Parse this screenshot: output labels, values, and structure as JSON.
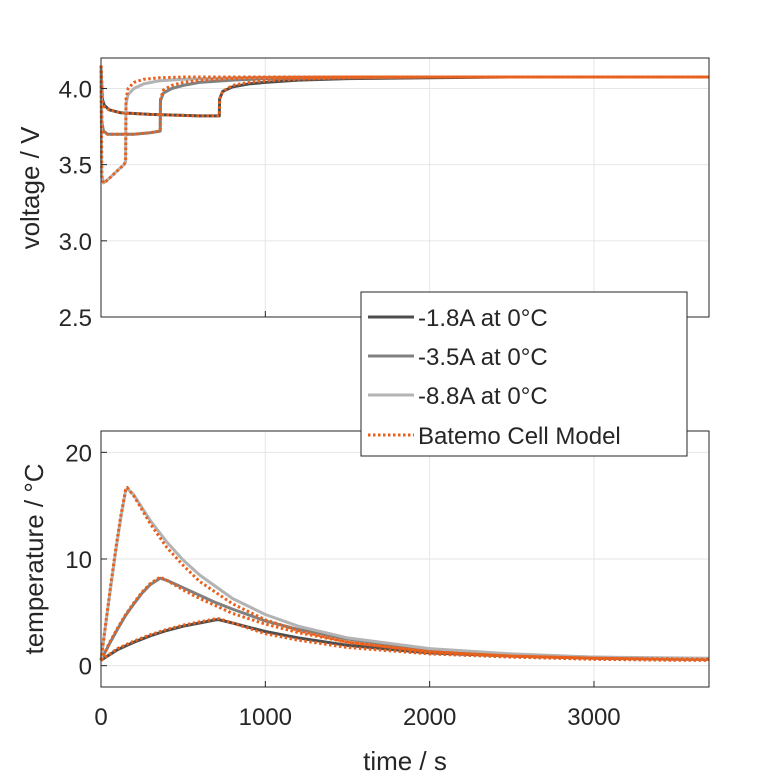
{
  "chart_data": [
    {
      "type": "line",
      "ylabel": "voltage / V",
      "xlabel": "",
      "xlim": [
        0,
        3700
      ],
      "ylim": [
        2.5,
        4.2
      ],
      "xticks": [
        0,
        1000,
        2000,
        3000
      ],
      "yticks": [
        2.5,
        3.0,
        3.5,
        4.0
      ],
      "ytick_labels": [
        "2.5",
        "3.0",
        "3.5",
        "4.0"
      ],
      "grid": true,
      "series": [
        {
          "name": "-1.8A at 0°C",
          "color": "#4d4d4d",
          "x": [
            0,
            8,
            20,
            50,
            120,
            300,
            600,
            720,
            722,
            740,
            800,
            900,
            1000,
            1200,
            1500,
            2000,
            2500,
            3000,
            3700
          ],
          "y": [
            4.15,
            3.93,
            3.89,
            3.86,
            3.84,
            3.83,
            3.82,
            3.82,
            3.93,
            3.98,
            4.01,
            4.03,
            4.04,
            4.055,
            4.065,
            4.07,
            4.075,
            4.075,
            4.075
          ]
        },
        {
          "name": "-3.5A at 0°C",
          "color": "#808080",
          "x": [
            0,
            5,
            15,
            40,
            100,
            200,
            300,
            360,
            362,
            380,
            430,
            500,
            600,
            800,
            1000,
            1500,
            2000,
            3000,
            3700
          ],
          "y": [
            4.15,
            3.78,
            3.72,
            3.7,
            3.7,
            3.7,
            3.71,
            3.72,
            3.92,
            3.97,
            4.0,
            4.02,
            4.04,
            4.055,
            4.065,
            4.07,
            4.075,
            4.075,
            4.075
          ]
        },
        {
          "name": "-8.8A at 0°C",
          "color": "#b3b3b3",
          "x": [
            0,
            5,
            15,
            30,
            60,
            100,
            140,
            150,
            152,
            165,
            200,
            260,
            350,
            500,
            800,
            1200,
            2000,
            3000,
            3700
          ],
          "y": [
            4.15,
            3.43,
            3.38,
            3.39,
            3.42,
            3.46,
            3.5,
            3.52,
            3.9,
            3.96,
            4.0,
            4.03,
            4.05,
            4.06,
            4.07,
            4.075,
            4.075,
            4.075,
            4.075
          ]
        },
        {
          "name": "Batemo Cell Model",
          "color": "#e8601c",
          "dashed": true,
          "x": [
            0,
            8,
            20,
            50,
            120,
            300,
            600,
            720,
            722,
            740,
            800,
            900,
            1000,
            1200,
            1500,
            2000,
            2500,
            3000,
            3700
          ],
          "y": [
            4.15,
            3.92,
            3.88,
            3.86,
            3.84,
            3.83,
            3.82,
            3.82,
            3.93,
            3.98,
            4.02,
            4.04,
            4.05,
            4.06,
            4.07,
            4.075,
            4.075,
            4.075,
            4.075
          ]
        },
        {
          "name": "Batemo Cell Model",
          "color": "#e8601c",
          "dashed": true,
          "x": [
            0,
            5,
            15,
            40,
            100,
            200,
            300,
            360,
            362,
            380,
            430,
            500,
            600,
            800,
            1000,
            1500,
            2000,
            3000,
            3700
          ],
          "y": [
            4.15,
            3.77,
            3.71,
            3.7,
            3.7,
            3.7,
            3.71,
            3.72,
            3.93,
            3.99,
            4.02,
            4.04,
            4.055,
            4.065,
            4.07,
            4.075,
            4.075,
            4.075,
            4.075
          ]
        },
        {
          "name": "Batemo Cell Model",
          "color": "#e8601c",
          "dashed": true,
          "x": [
            0,
            5,
            15,
            30,
            60,
            100,
            140,
            150,
            152,
            165,
            200,
            260,
            350,
            500,
            800,
            1200,
            2000,
            3000,
            3700
          ],
          "y": [
            4.15,
            3.42,
            3.38,
            3.39,
            3.42,
            3.46,
            3.5,
            3.52,
            3.93,
            4.0,
            4.04,
            4.06,
            4.07,
            4.075,
            4.075,
            4.075,
            4.075,
            4.075,
            4.075
          ]
        }
      ]
    },
    {
      "type": "line",
      "ylabel": "temperature / °C",
      "xlabel": "time / s",
      "xlim": [
        0,
        3700
      ],
      "ylim": [
        -2,
        22
      ],
      "xticks": [
        0,
        1000,
        2000,
        3000
      ],
      "xtick_labels": [
        "0",
        "1000",
        "2000",
        "3000"
      ],
      "yticks": [
        0,
        10,
        20
      ],
      "ytick_labels": [
        "0",
        "10",
        "20"
      ],
      "grid": true,
      "series": [
        {
          "name": "-1.8A at 0°C",
          "color": "#4d4d4d",
          "x": [
            0,
            100,
            200,
            300,
            400,
            500,
            600,
            700,
            720,
            800,
            900,
            1000,
            1200,
            1500,
            2000,
            2500,
            3000,
            3500,
            3700
          ],
          "y": [
            0.5,
            1.5,
            2.2,
            2.8,
            3.3,
            3.7,
            4.0,
            4.3,
            4.3,
            4.0,
            3.6,
            3.2,
            2.6,
            1.9,
            1.2,
            0.9,
            0.7,
            0.6,
            0.6
          ]
        },
        {
          "name": "-3.5A at 0°C",
          "color": "#808080",
          "x": [
            0,
            50,
            100,
            150,
            200,
            250,
            300,
            360,
            400,
            500,
            600,
            700,
            800,
            1000,
            1200,
            1500,
            2000,
            2500,
            3000,
            3700
          ],
          "y": [
            0.5,
            2.0,
            3.4,
            4.7,
            5.8,
            6.8,
            7.6,
            8.2,
            8.0,
            7.3,
            6.6,
            5.9,
            5.3,
            4.2,
            3.4,
            2.5,
            1.5,
            1.0,
            0.8,
            0.6
          ]
        },
        {
          "name": "-8.8A at 0°C",
          "color": "#b3b3b3",
          "x": [
            0,
            30,
            60,
            90,
            120,
            150,
            160,
            200,
            250,
            300,
            400,
            500,
            600,
            800,
            1000,
            1200,
            1500,
            2000,
            2500,
            3000,
            3700
          ],
          "y": [
            0.5,
            4.0,
            7.5,
            10.8,
            13.8,
            16.4,
            16.6,
            16.0,
            14.8,
            13.6,
            11.6,
            9.9,
            8.5,
            6.3,
            4.8,
            3.7,
            2.6,
            1.6,
            1.1,
            0.8,
            0.7
          ]
        },
        {
          "name": "Batemo Cell Model",
          "color": "#e8601c",
          "dashed": true,
          "x": [
            0,
            100,
            200,
            300,
            400,
            500,
            600,
            700,
            720,
            800,
            900,
            1000,
            1200,
            1500,
            2000,
            2500,
            3000,
            3500,
            3700
          ],
          "y": [
            0.5,
            1.6,
            2.3,
            2.9,
            3.4,
            3.8,
            4.1,
            4.4,
            4.4,
            4.0,
            3.5,
            3.0,
            2.4,
            1.7,
            1.1,
            0.8,
            0.6,
            0.5,
            0.5
          ]
        },
        {
          "name": "Batemo Cell Model",
          "color": "#e8601c",
          "dashed": true,
          "x": [
            0,
            50,
            100,
            150,
            200,
            250,
            300,
            360,
            400,
            500,
            600,
            700,
            800,
            1000,
            1200,
            1500,
            2000,
            2500,
            3000,
            3700
          ],
          "y": [
            0.5,
            2.1,
            3.5,
            4.8,
            5.9,
            6.9,
            7.7,
            8.3,
            8.0,
            7.1,
            6.3,
            5.6,
            4.9,
            3.9,
            3.1,
            2.2,
            1.3,
            0.9,
            0.7,
            0.5
          ]
        },
        {
          "name": "Batemo Cell Model",
          "color": "#e8601c",
          "dashed": true,
          "x": [
            0,
            30,
            60,
            90,
            120,
            150,
            160,
            200,
            250,
            300,
            400,
            500,
            600,
            800,
            1000,
            1200,
            1500,
            2000,
            2500,
            3000,
            3700
          ],
          "y": [
            0.5,
            4.1,
            7.7,
            11.0,
            14.0,
            16.5,
            16.7,
            15.9,
            14.6,
            13.3,
            11.1,
            9.4,
            7.9,
            5.8,
            4.3,
            3.3,
            2.2,
            1.3,
            0.9,
            0.7,
            0.6
          ]
        }
      ]
    }
  ],
  "legend": {
    "placement": "between-panels-right",
    "entries": [
      {
        "label": "-1.8A at 0°C",
        "color": "#4d4d4d",
        "dashed": false
      },
      {
        "label": "-3.5A at 0°C",
        "color": "#808080",
        "dashed": false
      },
      {
        "label": "-8.8A at 0°C",
        "color": "#b3b3b3",
        "dashed": false
      },
      {
        "label": "Batemo Cell Model",
        "color": "#e8601c",
        "dashed": true
      }
    ]
  }
}
